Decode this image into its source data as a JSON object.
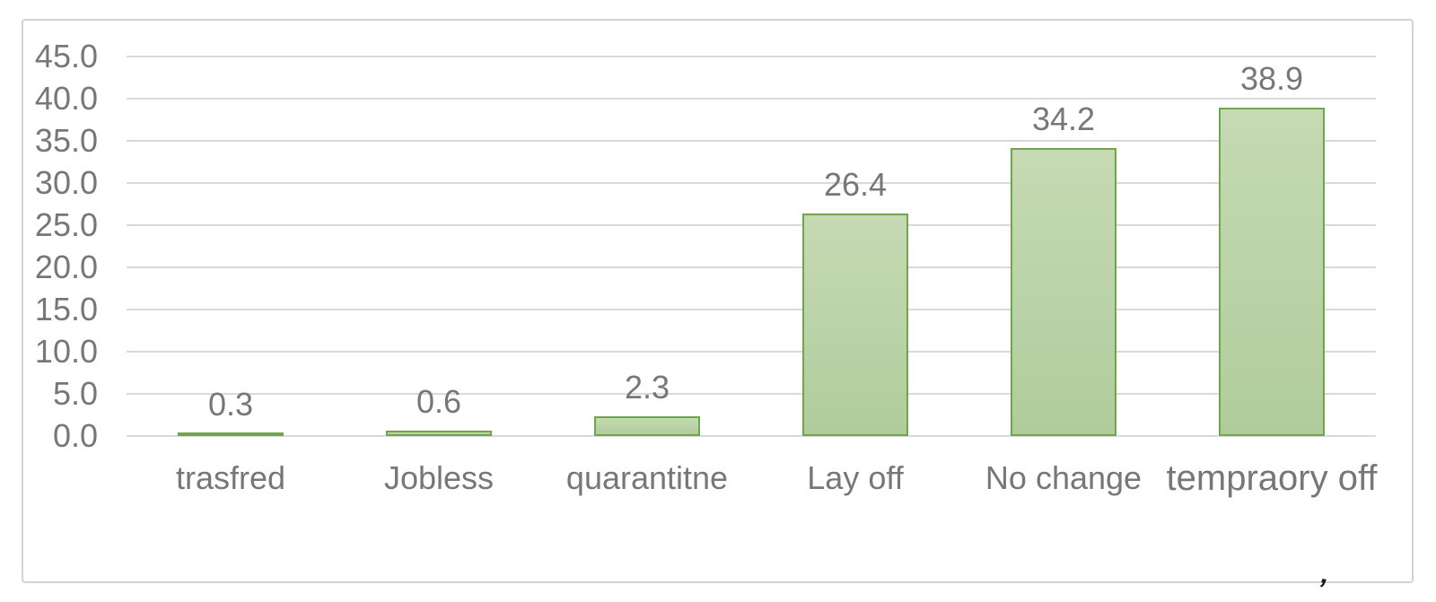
{
  "chart_data": {
    "type": "bar",
    "title": "",
    "xlabel": "",
    "ylabel": "",
    "categories": [
      "trasfred",
      "Jobless",
      "quarantitne",
      "Lay off",
      "No change",
      "tempraory off"
    ],
    "values": [
      0.3,
      0.6,
      2.3,
      26.4,
      34.2,
      38.9
    ],
    "data_labels": [
      "0.3",
      "0.6",
      "2.3",
      "26.4",
      "34.2",
      "38.9"
    ],
    "ylim": [
      0,
      45
    ],
    "ytick_labels": [
      "0.0",
      "5.0",
      "10.0",
      "15.0",
      "20.0",
      "25.0",
      "30.0",
      "35.0",
      "40.0",
      "45.0"
    ],
    "grid": true,
    "legend": false,
    "category_font_px": [
      36,
      36,
      36,
      36,
      36,
      40
    ],
    "colors": {
      "bar_fill_top": "#c6dab3",
      "bar_fill_bottom": "#b0cc9c",
      "bar_border": "#6fa64d",
      "gridline": "#d9d9d9",
      "label_text": "#777777",
      "frame_border": "#d5d2d2",
      "background": "#ffffff"
    }
  },
  "artifact": {
    "mark": "’"
  }
}
